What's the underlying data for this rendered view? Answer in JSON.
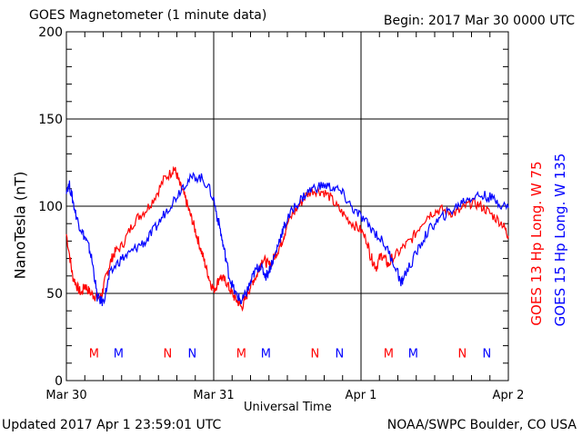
{
  "header": {
    "title": "GOES Magnetometer (1 minute data)",
    "begin": "Begin:  2017 Mar 30 0000 UTC"
  },
  "footer": {
    "updated": "Updated 2017 Apr  1 23:59:01 UTC",
    "credit": "NOAA/SWPC Boulder, CO USA"
  },
  "colors": {
    "goes13": "#ff0000",
    "goes15": "#0000ff",
    "frame": "#000000"
  },
  "chart_data": {
    "type": "line",
    "title": "GOES Magnetometer (1 minute data)",
    "xlabel": "Universal Time",
    "ylabel": "NanoTesla (nT)",
    "xlim_hours": [
      0,
      72
    ],
    "ylim": [
      0,
      200
    ],
    "x_ticks": [
      {
        "hour": 0,
        "label": "Mar 30"
      },
      {
        "hour": 24,
        "label": "Mar 31"
      },
      {
        "hour": 48,
        "label": "Apr 1"
      },
      {
        "hour": 72,
        "label": "Apr 2"
      }
    ],
    "y_ticks": [
      0,
      50,
      100,
      150,
      200
    ],
    "grid": true,
    "legend_placement": "right (vertical)",
    "series": [
      {
        "name": "GOES 13 Hp  Long. W 75",
        "color": "#ff0000",
        "points": [
          [
            0,
            84
          ],
          [
            0.6,
            70
          ],
          [
            1,
            60
          ],
          [
            1.5,
            56
          ],
          [
            2,
            52
          ],
          [
            2.5,
            50
          ],
          [
            3,
            55
          ],
          [
            3.5,
            52
          ],
          [
            4,
            50
          ],
          [
            4.5,
            49
          ],
          [
            5,
            48
          ],
          [
            5.7,
            48
          ],
          [
            6,
            53
          ],
          [
            6.5,
            60
          ],
          [
            7,
            66
          ],
          [
            7.5,
            71
          ],
          [
            8,
            74
          ],
          [
            9,
            77
          ],
          [
            10,
            84
          ],
          [
            11,
            91
          ],
          [
            12,
            95
          ],
          [
            13,
            98
          ],
          [
            14,
            103
          ],
          [
            15,
            109
          ],
          [
            16,
            116
          ],
          [
            17,
            119
          ],
          [
            17.5,
            122
          ],
          [
            18,
            118
          ],
          [
            18.5,
            112
          ],
          [
            19,
            108
          ],
          [
            19.5,
            103
          ],
          [
            20,
            97
          ],
          [
            20.5,
            92
          ],
          [
            21,
            86
          ],
          [
            21.5,
            80
          ],
          [
            22,
            74
          ],
          [
            22.5,
            68
          ],
          [
            23,
            62
          ],
          [
            23.5,
            56
          ],
          [
            24,
            52
          ],
          [
            24.5,
            55
          ],
          [
            25,
            60
          ],
          [
            25.5,
            58
          ],
          [
            26,
            57
          ],
          [
            26.5,
            53
          ],
          [
            27,
            50
          ],
          [
            27.5,
            47
          ],
          [
            28,
            45
          ],
          [
            28.5,
            42
          ],
          [
            29,
            45
          ],
          [
            29.5,
            50
          ],
          [
            30,
            54
          ],
          [
            30.5,
            58
          ],
          [
            31,
            60
          ],
          [
            31.5,
            66
          ],
          [
            32,
            70
          ],
          [
            32.5,
            68
          ],
          [
            33,
            66
          ],
          [
            33.5,
            68
          ],
          [
            34,
            72
          ],
          [
            34.5,
            75
          ],
          [
            35,
            79
          ],
          [
            35.5,
            84
          ],
          [
            36,
            90
          ],
          [
            37,
            96
          ],
          [
            38,
            101
          ],
          [
            39,
            106
          ],
          [
            40,
            109
          ],
          [
            41,
            109
          ],
          [
            42,
            108
          ],
          [
            43,
            105
          ],
          [
            44,
            100
          ],
          [
            45,
            96
          ],
          [
            46,
            92
          ],
          [
            47,
            89
          ],
          [
            48,
            86
          ],
          [
            49,
            80
          ],
          [
            49.5,
            72
          ],
          [
            50,
            68
          ],
          [
            50.5,
            65
          ],
          [
            51,
            70
          ],
          [
            51.5,
            72
          ],
          [
            52,
            69
          ],
          [
            52.5,
            66
          ],
          [
            53,
            70
          ],
          [
            54,
            73
          ],
          [
            55,
            77
          ],
          [
            56,
            80
          ],
          [
            57,
            85
          ],
          [
            58,
            91
          ],
          [
            59,
            95
          ],
          [
            60,
            97
          ],
          [
            61,
            98
          ],
          [
            62,
            97
          ],
          [
            63,
            96
          ],
          [
            64,
            97
          ],
          [
            65,
            100
          ],
          [
            66,
            102
          ],
          [
            67,
            101
          ],
          [
            68,
            99
          ],
          [
            69,
            96
          ],
          [
            70,
            93
          ],
          [
            71,
            90
          ],
          [
            71.6,
            86
          ],
          [
            72,
            83
          ]
        ]
      },
      {
        "name": "GOES 15 Hp  Long. W 135",
        "color": "#0000ff",
        "points": [
          [
            0,
            110
          ],
          [
            0.5,
            112
          ],
          [
            1,
            104
          ],
          [
            1.5,
            96
          ],
          [
            2,
            90
          ],
          [
            2.5,
            86
          ],
          [
            3,
            82
          ],
          [
            3.5,
            78
          ],
          [
            4,
            72
          ],
          [
            4.5,
            62
          ],
          [
            5,
            48
          ],
          [
            5.5,
            46
          ],
          [
            6,
            45
          ],
          [
            6.5,
            52
          ],
          [
            7,
            60
          ],
          [
            8,
            66
          ],
          [
            9,
            70
          ],
          [
            10,
            72
          ],
          [
            11,
            75
          ],
          [
            12,
            78
          ],
          [
            13,
            80
          ],
          [
            14,
            85
          ],
          [
            15,
            90
          ],
          [
            16,
            96
          ],
          [
            17,
            101
          ],
          [
            18,
            106
          ],
          [
            19,
            112
          ],
          [
            20,
            115
          ],
          [
            21,
            117
          ],
          [
            22,
            116
          ],
          [
            23,
            112
          ],
          [
            24,
            104
          ],
          [
            24.5,
            95
          ],
          [
            25,
            88
          ],
          [
            25.5,
            78
          ],
          [
            26,
            70
          ],
          [
            26.5,
            60
          ],
          [
            27,
            55
          ],
          [
            27.5,
            50
          ],
          [
            28,
            48
          ],
          [
            28.5,
            45
          ],
          [
            29,
            48
          ],
          [
            29.5,
            52
          ],
          [
            30,
            56
          ],
          [
            30.5,
            61
          ],
          [
            31,
            64
          ],
          [
            31.5,
            66
          ],
          [
            32,
            63
          ],
          [
            32.5,
            60
          ],
          [
            33,
            63
          ],
          [
            33.5,
            68
          ],
          [
            34,
            72
          ],
          [
            34.5,
            78
          ],
          [
            35,
            84
          ],
          [
            35.5,
            88
          ],
          [
            36,
            92
          ],
          [
            37,
            99
          ],
          [
            38,
            103
          ],
          [
            39,
            107
          ],
          [
            40,
            110
          ],
          [
            41,
            111
          ],
          [
            42,
            112
          ],
          [
            43,
            111
          ],
          [
            44,
            110
          ],
          [
            45,
            107
          ],
          [
            46,
            102
          ],
          [
            47,
            97
          ],
          [
            48,
            94
          ],
          [
            49,
            90
          ],
          [
            50,
            86
          ],
          [
            51,
            82
          ],
          [
            52,
            77
          ],
          [
            53,
            70
          ],
          [
            54,
            62
          ],
          [
            54.5,
            55
          ],
          [
            55,
            60
          ],
          [
            56,
            66
          ],
          [
            57,
            73
          ],
          [
            58,
            80
          ],
          [
            59,
            86
          ],
          [
            60,
            90
          ],
          [
            61,
            93
          ],
          [
            62,
            96
          ],
          [
            63,
            98
          ],
          [
            64,
            101
          ],
          [
            65,
            104
          ],
          [
            66,
            105
          ],
          [
            67,
            106
          ],
          [
            68,
            106
          ],
          [
            69,
            105
          ],
          [
            70,
            103
          ],
          [
            71,
            101
          ],
          [
            72,
            99
          ]
        ]
      }
    ],
    "markers": [
      {
        "label": "M",
        "hour": 4.5,
        "color": "#ff0000"
      },
      {
        "label": "M",
        "hour": 8.5,
        "color": "#0000ff"
      },
      {
        "label": "N",
        "hour": 16.5,
        "color": "#ff0000"
      },
      {
        "label": "N",
        "hour": 20.5,
        "color": "#0000ff"
      },
      {
        "label": "M",
        "hour": 28.5,
        "color": "#ff0000"
      },
      {
        "label": "M",
        "hour": 32.5,
        "color": "#0000ff"
      },
      {
        "label": "N",
        "hour": 40.5,
        "color": "#ff0000"
      },
      {
        "label": "N",
        "hour": 44.5,
        "color": "#0000ff"
      },
      {
        "label": "M",
        "hour": 52.5,
        "color": "#ff0000"
      },
      {
        "label": "M",
        "hour": 56.5,
        "color": "#0000ff"
      },
      {
        "label": "N",
        "hour": 64.5,
        "color": "#ff0000"
      },
      {
        "label": "N",
        "hour": 68.5,
        "color": "#0000ff"
      }
    ],
    "marker_level": 16
  }
}
